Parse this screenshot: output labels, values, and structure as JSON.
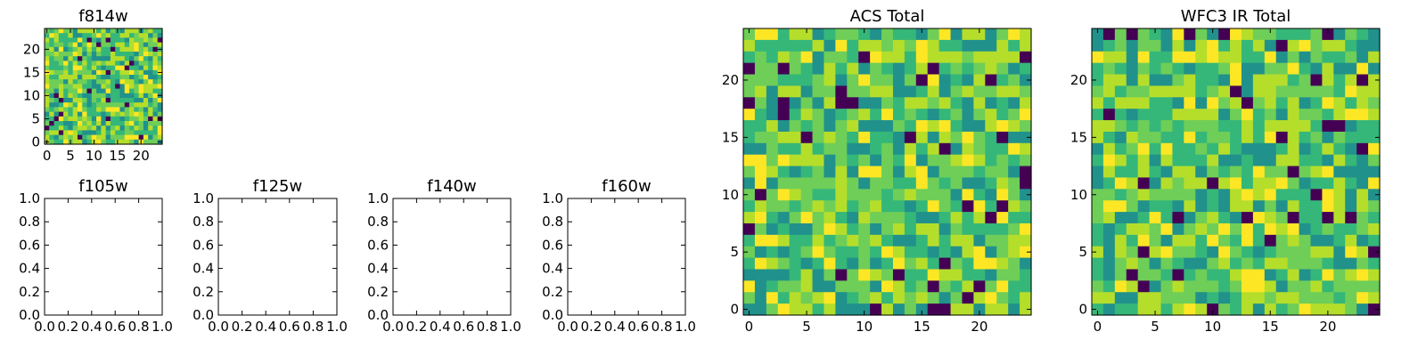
{
  "chart_data": [
    {
      "type": "heatmap",
      "title": "f814w",
      "colormap": "viridis",
      "xlim": [
        -0.5,
        24.5
      ],
      "ylim": [
        -0.5,
        24.5
      ],
      "xticks": [
        "0",
        "5",
        "10",
        "15",
        "20"
      ],
      "yticks": [
        "0",
        "5",
        "10",
        "15",
        "20"
      ],
      "grid_size": [
        25,
        25
      ],
      "note_values": "25x25 pixel noise image; individual cell values not legible in screenshot"
    },
    {
      "type": "empty",
      "title": "f105w",
      "xlim": [
        0,
        1
      ],
      "ylim": [
        0,
        1
      ],
      "xticks": [
        "0.0",
        "0.2",
        "0.4",
        "0.6",
        "0.8",
        "1.0"
      ],
      "yticks": [
        "0.0",
        "0.2",
        "0.4",
        "0.6",
        "0.8",
        "1.0"
      ]
    },
    {
      "type": "empty",
      "title": "f125w",
      "xlim": [
        0,
        1
      ],
      "ylim": [
        0,
        1
      ],
      "xticks": [
        "0.0",
        "0.2",
        "0.4",
        "0.6",
        "0.8",
        "1.0"
      ],
      "yticks": [
        "0.0",
        "0.2",
        "0.4",
        "0.6",
        "0.8",
        "1.0"
      ]
    },
    {
      "type": "empty",
      "title": "f140w",
      "xlim": [
        0,
        1
      ],
      "ylim": [
        0,
        1
      ],
      "xticks": [
        "0.0",
        "0.2",
        "0.4",
        "0.6",
        "0.8",
        "1.0"
      ],
      "yticks": [
        "0.0",
        "0.2",
        "0.4",
        "0.6",
        "0.8",
        "1.0"
      ]
    },
    {
      "type": "empty",
      "title": "f160w",
      "xlim": [
        0,
        1
      ],
      "ylim": [
        0,
        1
      ],
      "xticks": [
        "0.0",
        "0.2",
        "0.4",
        "0.6",
        "0.8",
        "1.0"
      ],
      "yticks": [
        "0.0",
        "0.2",
        "0.4",
        "0.6",
        "0.8",
        "1.0"
      ]
    },
    {
      "type": "heatmap",
      "title": "ACS Total",
      "colormap": "viridis",
      "xlim": [
        -0.5,
        24.5
      ],
      "ylim": [
        -0.5,
        24.5
      ],
      "xticks": [
        "0",
        "5",
        "10",
        "15",
        "20"
      ],
      "yticks": [
        "0",
        "5",
        "10",
        "15",
        "20"
      ],
      "grid_size": [
        25,
        25
      ]
    },
    {
      "type": "heatmap",
      "title": "WFC3 IR Total",
      "colormap": "viridis",
      "xlim": [
        -0.5,
        24.5
      ],
      "ylim": [
        -0.5,
        24.5
      ],
      "xticks": [
        "0",
        "5",
        "10",
        "15",
        "20"
      ],
      "yticks": [
        "0",
        "5",
        "10",
        "15",
        "20"
      ],
      "grid_size": [
        25,
        25
      ]
    }
  ],
  "palette": [
    "#440154",
    "#21918c",
    "#35b779",
    "#6ece58",
    "#b5de2b",
    "#fde725"
  ]
}
